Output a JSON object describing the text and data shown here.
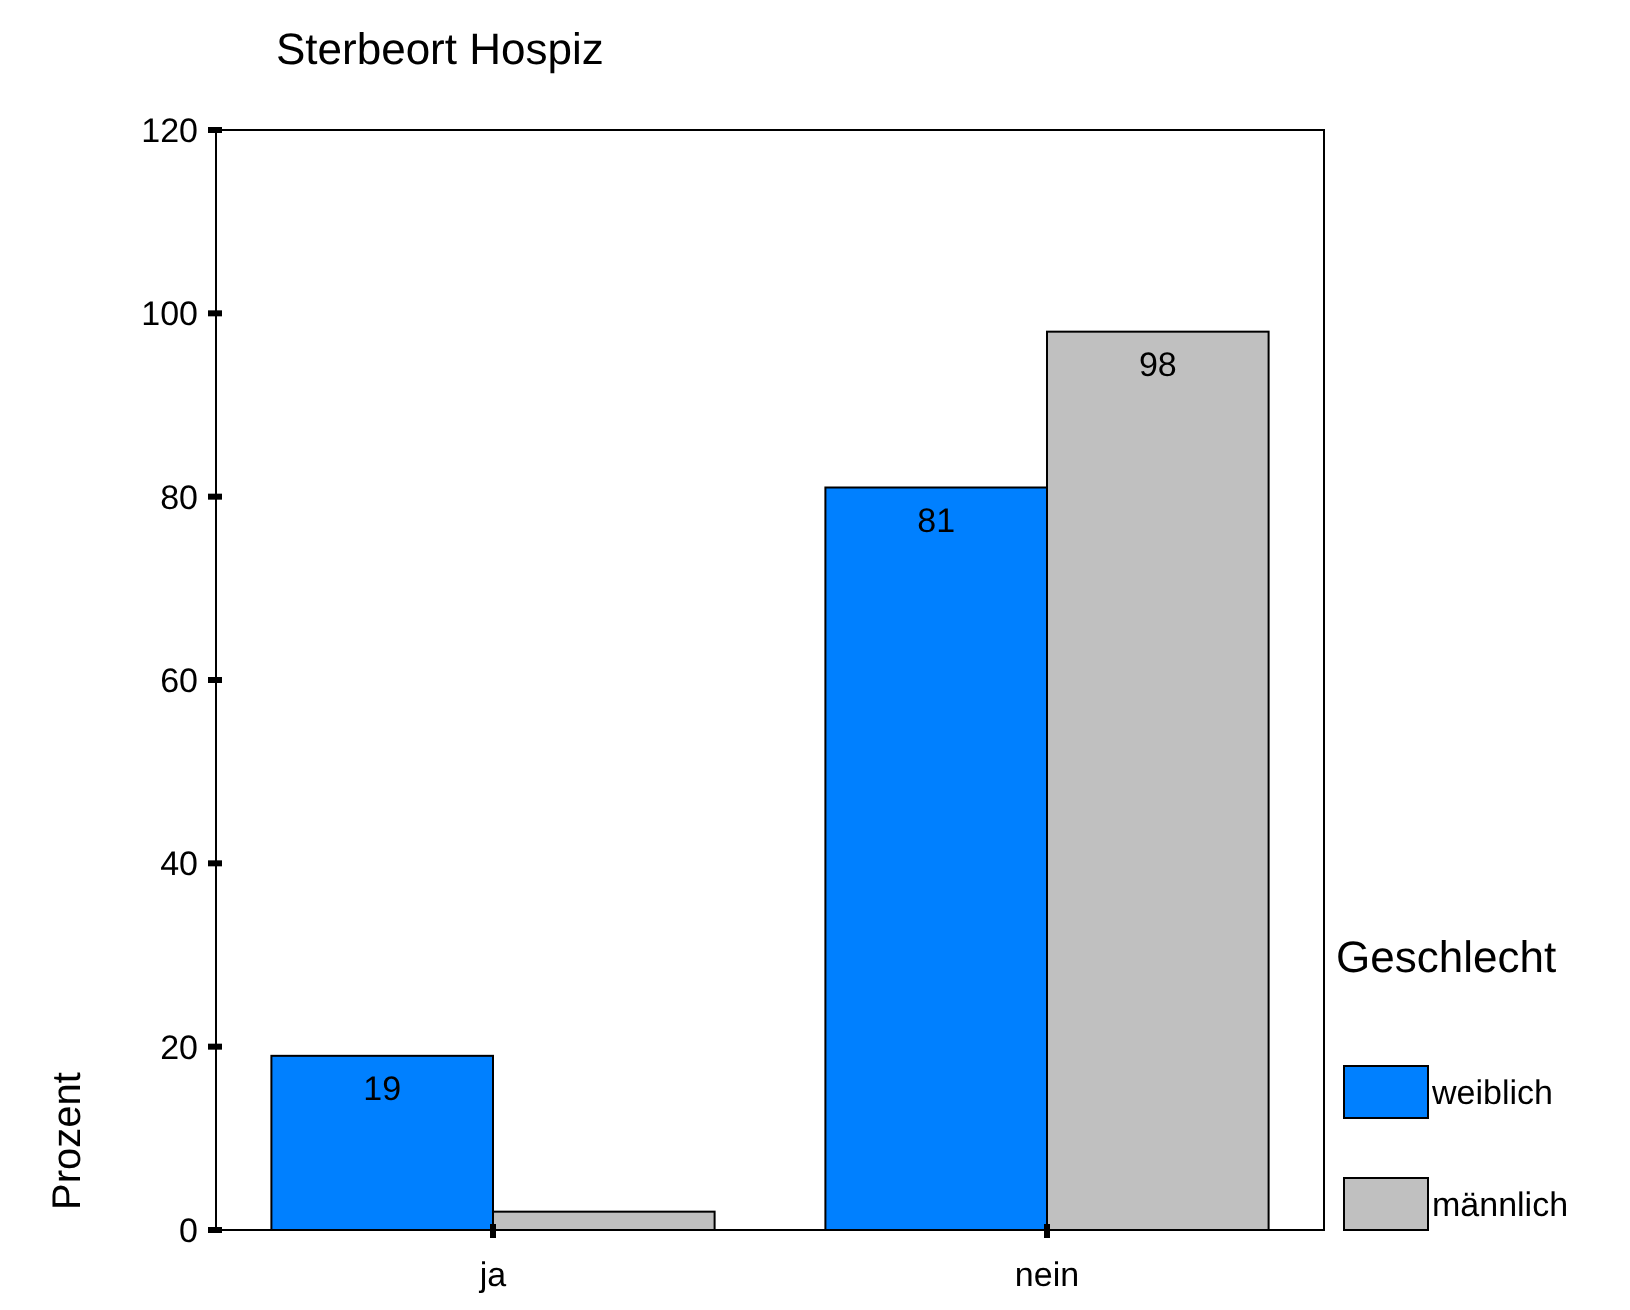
{
  "chart_data": {
    "type": "bar",
    "title": "Sterbeort Hospiz",
    "ylabel": "Prozent",
    "legend_title": "Geschlecht",
    "categories": [
      "ja",
      "nein"
    ],
    "series": [
      {
        "name": "weiblich",
        "color": "#0080ff",
        "values": [
          19,
          81
        ],
        "value_labels": [
          "19",
          "81"
        ]
      },
      {
        "name": "männlich",
        "color": "#c0c0c0",
        "values": [
          2,
          98
        ],
        "value_labels": [
          null,
          "98"
        ]
      }
    ],
    "ylim": [
      0,
      120
    ],
    "yticks": [
      0,
      20,
      40,
      60,
      80,
      100,
      120
    ],
    "grid": false,
    "legend": "right"
  }
}
